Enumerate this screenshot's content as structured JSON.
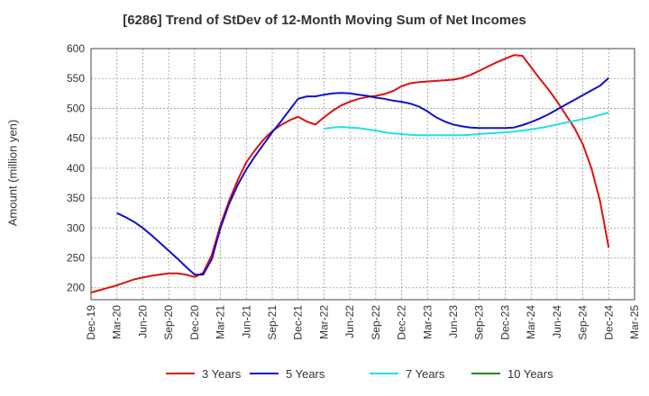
{
  "chart_data": {
    "type": "line",
    "title": "[6286]  Trend of StDev of 12-Month Moving Sum of Net Incomes",
    "xlabel": "",
    "ylabel": "Amount (million yen)",
    "ylim": [
      180,
      600
    ],
    "yticks": [
      200,
      250,
      300,
      350,
      400,
      450,
      500,
      550,
      600
    ],
    "xticks": [
      "Dec-19",
      "Mar-20",
      "Jun-20",
      "Sep-20",
      "Dec-20",
      "Mar-21",
      "Jun-21",
      "Sep-21",
      "Dec-21",
      "Mar-22",
      "Jun-22",
      "Sep-22",
      "Dec-22",
      "Mar-23",
      "Jun-23",
      "Sep-23",
      "Dec-23",
      "Mar-24",
      "Jun-24",
      "Sep-24",
      "Dec-24",
      "Mar-25"
    ],
    "grid": true,
    "legend_position": "bottom",
    "series": [
      {
        "name": "3 Years",
        "color": "#dd1111",
        "x": [
          "Dec-19",
          "Jan-20",
          "Feb-20",
          "Mar-20",
          "Apr-20",
          "May-20",
          "Jun-20",
          "Jul-20",
          "Aug-20",
          "Sep-20",
          "Oct-20",
          "Nov-20",
          "Dec-20",
          "Jan-21",
          "Feb-21",
          "Mar-21",
          "Apr-21",
          "May-21",
          "Jun-21",
          "Jul-21",
          "Aug-21",
          "Sep-21",
          "Oct-21",
          "Nov-21",
          "Dec-21",
          "Jan-22",
          "Feb-22",
          "Mar-22",
          "Apr-22",
          "May-22",
          "Jun-22",
          "Jul-22",
          "Aug-22",
          "Sep-22",
          "Oct-22",
          "Nov-22",
          "Dec-22",
          "Jan-23",
          "Feb-23",
          "Mar-23",
          "Apr-23",
          "May-23",
          "Jun-23",
          "Jul-23",
          "Aug-23",
          "Sep-23",
          "Oct-23",
          "Nov-23",
          "Dec-23",
          "Jan-24",
          "Feb-24",
          "Mar-24",
          "Apr-24",
          "May-24",
          "Jun-24",
          "Jul-24",
          "Aug-24",
          "Sep-24",
          "Oct-24",
          "Nov-24",
          "Dec-24"
        ],
        "values": [
          192,
          196,
          200,
          204,
          209,
          214,
          217,
          220,
          222,
          224,
          224,
          222,
          218,
          225,
          255,
          305,
          345,
          380,
          410,
          430,
          448,
          462,
          472,
          480,
          486,
          478,
          473,
          485,
          496,
          505,
          511,
          516,
          519,
          521,
          524,
          529,
          537,
          542,
          544,
          545,
          546,
          547,
          548,
          551,
          556,
          563,
          570,
          577,
          583,
          589,
          588,
          569,
          550,
          532,
          512,
          490,
          468,
          440,
          400,
          345,
          267
        ]
      },
      {
        "name": "5 Years",
        "color": "#1111cc",
        "x": [
          "Mar-20",
          "Apr-20",
          "May-20",
          "Jun-20",
          "Jul-20",
          "Aug-20",
          "Sep-20",
          "Oct-20",
          "Nov-20",
          "Dec-20",
          "Jan-21",
          "Feb-21",
          "Mar-21",
          "Apr-21",
          "May-21",
          "Jun-21",
          "Jul-21",
          "Aug-21",
          "Sep-21",
          "Oct-21",
          "Nov-21",
          "Dec-21",
          "Jan-22",
          "Feb-22",
          "Mar-22",
          "Apr-22",
          "May-22",
          "Jun-22",
          "Jul-22",
          "Aug-22",
          "Sep-22",
          "Oct-22",
          "Nov-22",
          "Dec-22",
          "Jan-23",
          "Feb-23",
          "Mar-23",
          "Apr-23",
          "May-23",
          "Jun-23",
          "Jul-23",
          "Aug-23",
          "Sep-23",
          "Oct-23",
          "Nov-23",
          "Dec-23",
          "Jan-24",
          "Feb-24",
          "Mar-24",
          "Apr-24",
          "May-24",
          "Jun-24",
          "Jul-24",
          "Aug-24",
          "Sep-24",
          "Oct-24",
          "Nov-24",
          "Dec-24"
        ],
        "values": [
          325,
          318,
          310,
          300,
          288,
          275,
          262,
          249,
          235,
          222,
          222,
          248,
          300,
          340,
          372,
          398,
          420,
          440,
          460,
          478,
          497,
          516,
          520,
          520,
          523,
          525,
          526,
          525,
          523,
          521,
          518,
          516,
          513,
          511,
          508,
          503,
          495,
          485,
          478,
          473,
          470,
          468,
          467,
          467,
          467,
          467,
          468,
          472,
          477,
          483,
          490,
          498,
          506,
          514,
          522,
          530,
          538,
          551
        ]
      },
      {
        "name": "7 Years",
        "color": "#22e0e0",
        "x": [
          "Mar-22",
          "Apr-22",
          "May-22",
          "Jun-22",
          "Jul-22",
          "Aug-22",
          "Sep-22",
          "Oct-22",
          "Nov-22",
          "Dec-22",
          "Jan-23",
          "Feb-23",
          "Mar-23",
          "Apr-23",
          "May-23",
          "Jun-23",
          "Jul-23",
          "Aug-23",
          "Sep-23",
          "Oct-23",
          "Nov-23",
          "Dec-23",
          "Jan-24",
          "Feb-24",
          "Mar-24",
          "Apr-24",
          "May-24",
          "Jun-24",
          "Jul-24",
          "Aug-24",
          "Sep-24",
          "Oct-24",
          "Nov-24",
          "Dec-24"
        ],
        "values": [
          466,
          468,
          469,
          468,
          467,
          465,
          463,
          460,
          458,
          457,
          456,
          455,
          455,
          455,
          455,
          455,
          455,
          456,
          457,
          458,
          459,
          460,
          461,
          463,
          465,
          467,
          470,
          473,
          476,
          479,
          482,
          485,
          489,
          493
        ]
      },
      {
        "name": "10 Years",
        "color": "#228822",
        "x": [],
        "values": []
      }
    ]
  }
}
